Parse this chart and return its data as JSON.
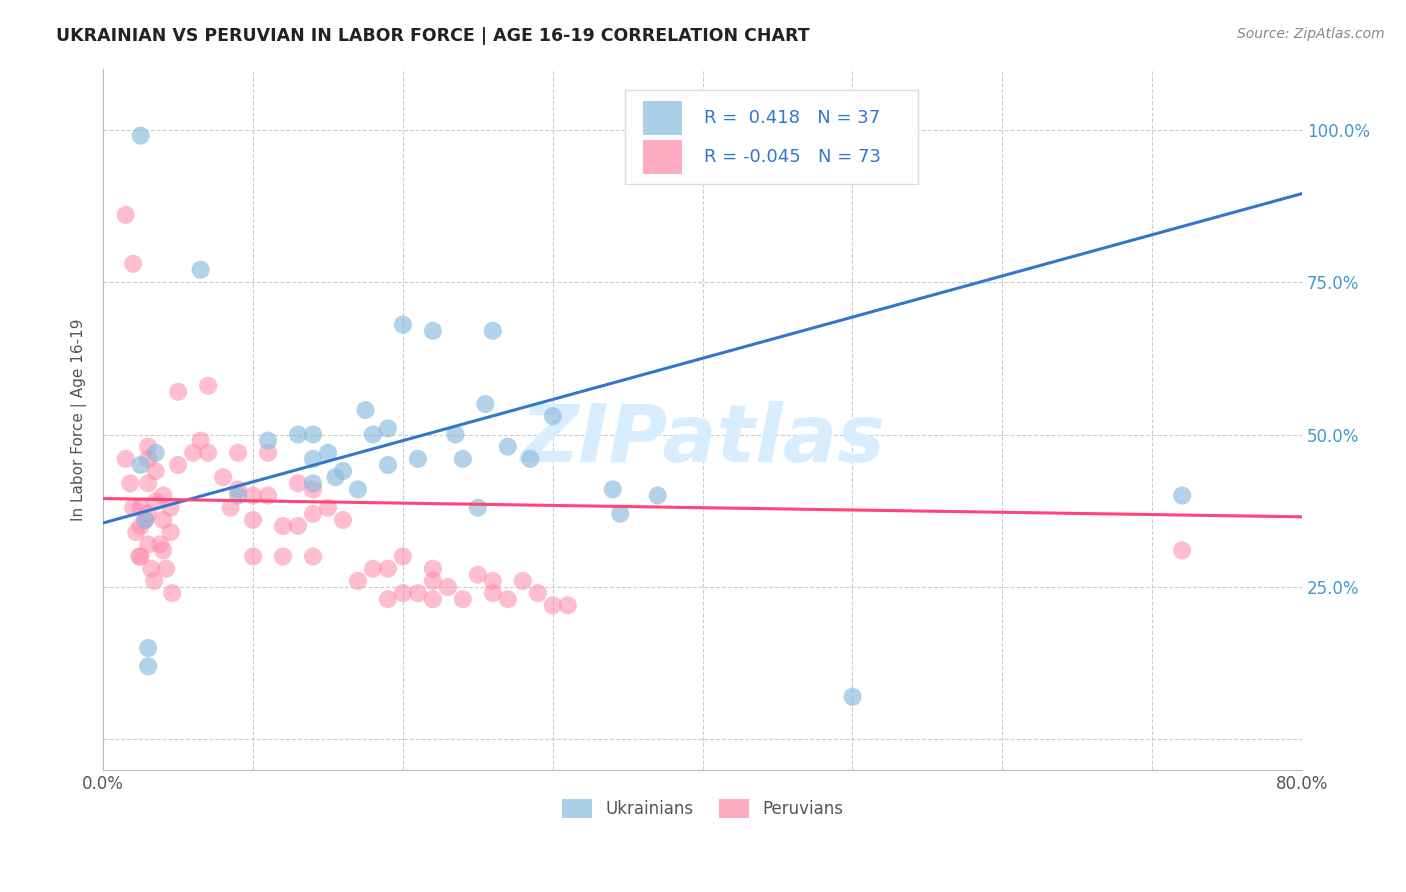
{
  "title": "UKRAINIAN VS PERUVIAN IN LABOR FORCE | AGE 16-19 CORRELATION CHART",
  "source": "Source: ZipAtlas.com",
  "ylabel": "In Labor Force | Age 16-19",
  "xlim": [
    0.0,
    0.8
  ],
  "ylim": [
    -0.05,
    1.1
  ],
  "blue_color": "#88BBDD",
  "pink_color": "#FF88AA",
  "blue_line_color": "#3377CC",
  "pink_line_color": "#FF4477",
  "watermark": "ZIPatlas",
  "watermark_color": "#D8EEFF",
  "blue_x": [
    0.025,
    0.025,
    0.028,
    0.03,
    0.03,
    0.035,
    0.065,
    0.09,
    0.11,
    0.13,
    0.14,
    0.14,
    0.14,
    0.15,
    0.155,
    0.16,
    0.17,
    0.175,
    0.18,
    0.19,
    0.19,
    0.2,
    0.21,
    0.22,
    0.235,
    0.24,
    0.25,
    0.255,
    0.26,
    0.27,
    0.285,
    0.3,
    0.34,
    0.37,
    0.5,
    0.72,
    0.345
  ],
  "blue_y": [
    0.99,
    0.45,
    0.36,
    0.15,
    0.12,
    0.47,
    0.77,
    0.4,
    0.49,
    0.5,
    0.5,
    0.42,
    0.46,
    0.47,
    0.43,
    0.44,
    0.41,
    0.54,
    0.5,
    0.51,
    0.45,
    0.68,
    0.46,
    0.67,
    0.5,
    0.46,
    0.38,
    0.55,
    0.67,
    0.48,
    0.46,
    0.53,
    0.41,
    0.4,
    0.07,
    0.4,
    0.37
  ],
  "pink_x": [
    0.015,
    0.015,
    0.018,
    0.02,
    0.02,
    0.022,
    0.024,
    0.025,
    0.025,
    0.025,
    0.028,
    0.03,
    0.03,
    0.03,
    0.03,
    0.03,
    0.032,
    0.034,
    0.035,
    0.035,
    0.038,
    0.04,
    0.04,
    0.04,
    0.042,
    0.045,
    0.045,
    0.046,
    0.05,
    0.05,
    0.06,
    0.065,
    0.07,
    0.07,
    0.08,
    0.085,
    0.09,
    0.09,
    0.1,
    0.1,
    0.1,
    0.11,
    0.11,
    0.12,
    0.12,
    0.13,
    0.13,
    0.14,
    0.14,
    0.14,
    0.15,
    0.16,
    0.17,
    0.18,
    0.19,
    0.19,
    0.2,
    0.2,
    0.21,
    0.22,
    0.22,
    0.22,
    0.23,
    0.24,
    0.25,
    0.26,
    0.26,
    0.27,
    0.28,
    0.29,
    0.3,
    0.31,
    0.72
  ],
  "pink_y": [
    0.86,
    0.46,
    0.42,
    0.78,
    0.38,
    0.34,
    0.3,
    0.38,
    0.35,
    0.3,
    0.36,
    0.48,
    0.42,
    0.37,
    0.32,
    0.46,
    0.28,
    0.26,
    0.44,
    0.39,
    0.32,
    0.4,
    0.36,
    0.31,
    0.28,
    0.38,
    0.34,
    0.24,
    0.57,
    0.45,
    0.47,
    0.49,
    0.58,
    0.47,
    0.43,
    0.38,
    0.47,
    0.41,
    0.4,
    0.36,
    0.3,
    0.47,
    0.4,
    0.35,
    0.3,
    0.42,
    0.35,
    0.41,
    0.37,
    0.3,
    0.38,
    0.36,
    0.26,
    0.28,
    0.28,
    0.23,
    0.24,
    0.3,
    0.24,
    0.28,
    0.23,
    0.26,
    0.25,
    0.23,
    0.27,
    0.24,
    0.26,
    0.23,
    0.26,
    0.24,
    0.22,
    0.22,
    0.31
  ],
  "blue_line_x0": 0.0,
  "blue_line_x1": 0.8,
  "blue_line_y0": 0.355,
  "blue_line_y1": 0.895,
  "pink_line_x0": 0.0,
  "pink_line_x1": 0.8,
  "pink_line_y0": 0.395,
  "pink_line_y1": 0.365,
  "legend_R_blue": "0.418",
  "legend_N_blue": "37",
  "legend_R_pink": "-0.045",
  "legend_N_pink": "73",
  "x_tick_positions": [
    0.0,
    0.1,
    0.2,
    0.3,
    0.4,
    0.5,
    0.6,
    0.7,
    0.8
  ],
  "x_tick_labels": [
    "0.0%",
    "",
    "",
    "",
    "",
    "",
    "",
    "",
    "80.0%"
  ],
  "y_tick_positions": [
    0.0,
    0.25,
    0.5,
    0.75,
    1.0
  ],
  "y_tick_labels_right": [
    "",
    "25.0%",
    "50.0%",
    "75.0%",
    "100.0%"
  ]
}
